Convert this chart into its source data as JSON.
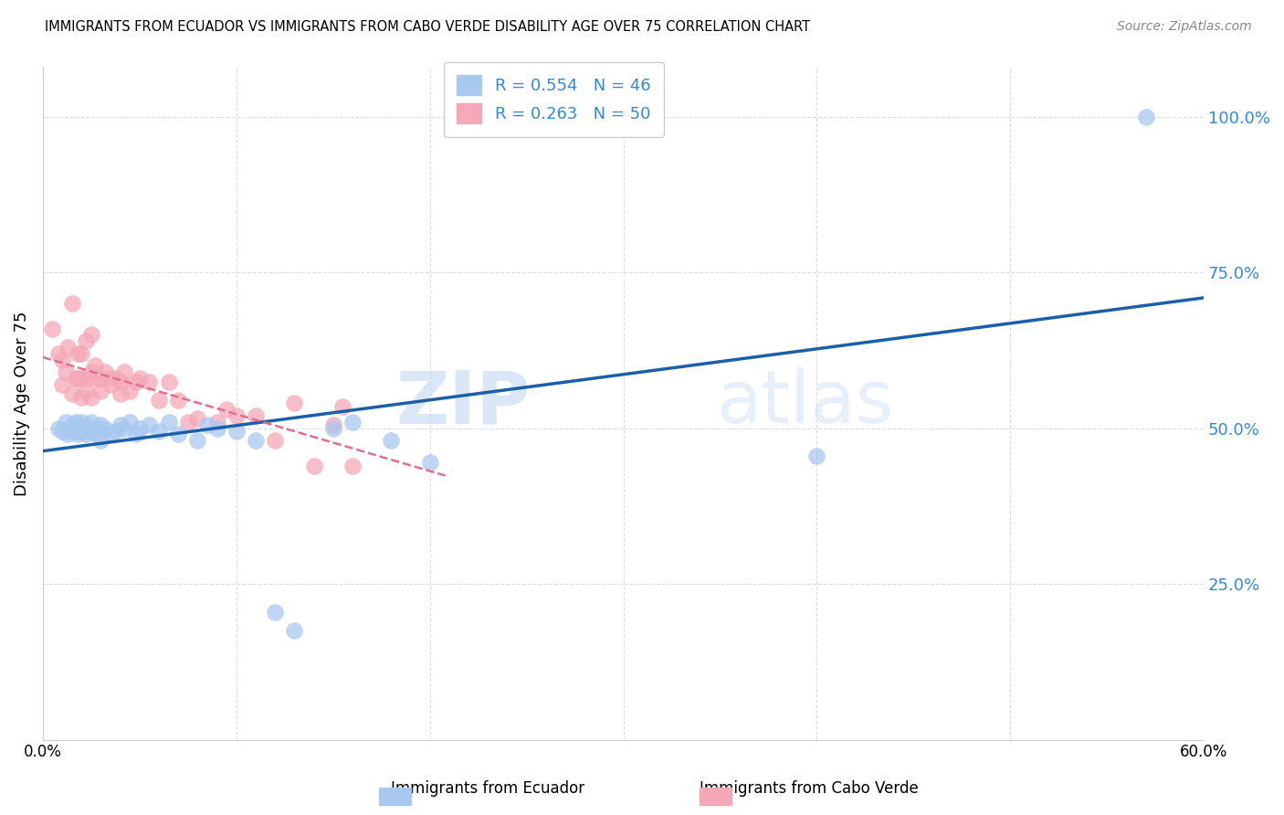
{
  "title": "IMMIGRANTS FROM ECUADOR VS IMMIGRANTS FROM CABO VERDE DISABILITY AGE OVER 75 CORRELATION CHART",
  "source": "Source: ZipAtlas.com",
  "ylabel": "Disability Age Over 75",
  "legend_label1": "Immigrants from Ecuador",
  "legend_label2": "Immigrants from Cabo Verde",
  "R1": 0.554,
  "N1": 46,
  "R2": 0.263,
  "N2": 50,
  "color1": "#a8c8f0",
  "color2": "#f5a8b8",
  "trendline1_color": "#1a5fa8",
  "trendline2_color": "#e07090",
  "xlim": [
    0.0,
    0.6
  ],
  "ylim": [
    0.0,
    1.08
  ],
  "yticks": [
    0.25,
    0.5,
    0.75,
    1.0
  ],
  "ytick_labels": [
    "25.0%",
    "50.0%",
    "75.0%",
    "100.0%"
  ],
  "xticks": [
    0.0,
    0.1,
    0.2,
    0.3,
    0.4,
    0.5,
    0.6
  ],
  "xtick_labels": [
    "0.0%",
    "",
    "",
    "",
    "",
    "",
    "60.0%"
  ],
  "watermark_zip": "ZIP",
  "watermark_atlas": "atlas",
  "ecuador_x": [
    0.008,
    0.01,
    0.012,
    0.013,
    0.015,
    0.015,
    0.016,
    0.017,
    0.018,
    0.018,
    0.02,
    0.02,
    0.022,
    0.022,
    0.023,
    0.025,
    0.025,
    0.028,
    0.028,
    0.03,
    0.03,
    0.032,
    0.035,
    0.038,
    0.04,
    0.042,
    0.045,
    0.048,
    0.05,
    0.055,
    0.06,
    0.065,
    0.07,
    0.08,
    0.085,
    0.09,
    0.1,
    0.11,
    0.12,
    0.13,
    0.15,
    0.16,
    0.18,
    0.2,
    0.4,
    0.57
  ],
  "ecuador_y": [
    0.5,
    0.495,
    0.51,
    0.49,
    0.505,
    0.495,
    0.5,
    0.51,
    0.5,
    0.49,
    0.51,
    0.495,
    0.505,
    0.49,
    0.5,
    0.51,
    0.495,
    0.5,
    0.49,
    0.505,
    0.48,
    0.5,
    0.49,
    0.495,
    0.505,
    0.5,
    0.51,
    0.49,
    0.5,
    0.505,
    0.495,
    0.51,
    0.49,
    0.48,
    0.505,
    0.5,
    0.495,
    0.48,
    0.205,
    0.175,
    0.5,
    0.51,
    0.48,
    0.445,
    0.455,
    1.0
  ],
  "caboverde_x": [
    0.005,
    0.008,
    0.01,
    0.01,
    0.012,
    0.013,
    0.015,
    0.015,
    0.017,
    0.018,
    0.018,
    0.02,
    0.02,
    0.02,
    0.022,
    0.022,
    0.023,
    0.025,
    0.025,
    0.025,
    0.027,
    0.028,
    0.03,
    0.03,
    0.032,
    0.035,
    0.035,
    0.038,
    0.04,
    0.04,
    0.042,
    0.045,
    0.048,
    0.05,
    0.055,
    0.06,
    0.065,
    0.07,
    0.075,
    0.08,
    0.09,
    0.095,
    0.1,
    0.11,
    0.12,
    0.13,
    0.14,
    0.15,
    0.155,
    0.16
  ],
  "caboverde_y": [
    0.66,
    0.62,
    0.61,
    0.57,
    0.59,
    0.63,
    0.7,
    0.555,
    0.58,
    0.62,
    0.58,
    0.62,
    0.58,
    0.55,
    0.56,
    0.64,
    0.58,
    0.65,
    0.59,
    0.55,
    0.6,
    0.58,
    0.56,
    0.58,
    0.59,
    0.57,
    0.58,
    0.58,
    0.555,
    0.575,
    0.59,
    0.56,
    0.575,
    0.58,
    0.575,
    0.545,
    0.575,
    0.545,
    0.51,
    0.515,
    0.51,
    0.53,
    0.52,
    0.52,
    0.48,
    0.54,
    0.44,
    0.505,
    0.535,
    0.44
  ]
}
